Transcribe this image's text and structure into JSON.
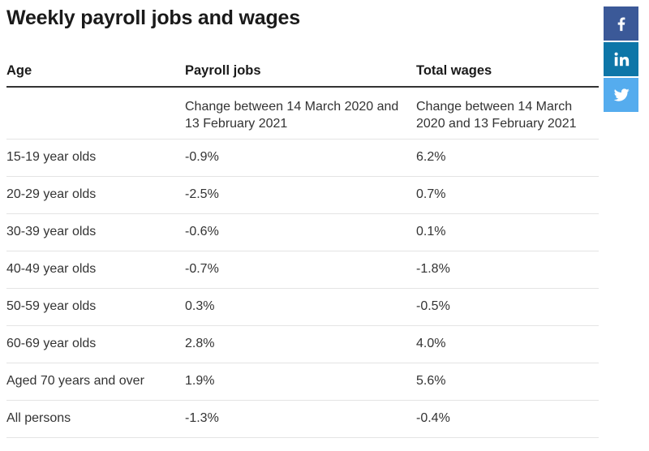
{
  "title": "Weekly payroll jobs and wages",
  "table": {
    "headers": [
      "Age",
      "Payroll jobs",
      "Total wages"
    ],
    "subheader": [
      "",
      "Change between 14 March 2020 and 13 February 2021",
      "Change between 14 March 2020 and 13 February 2021"
    ],
    "rows": [
      [
        "15-19 year olds",
        "-0.9%",
        "6.2%"
      ],
      [
        "20-29 year olds",
        "-2.5%",
        "0.7%"
      ],
      [
        "30-39 year olds",
        "-0.6%",
        "0.1%"
      ],
      [
        "40-49 year olds",
        "-0.7%",
        "-1.8%"
      ],
      [
        "50-59 year olds",
        "0.3%",
        "-0.5%"
      ],
      [
        "60-69 year olds",
        "2.8%",
        "4.0%"
      ],
      [
        "Aged 70 years and over",
        "1.9%",
        "5.6%"
      ],
      [
        "All persons",
        "-1.3%",
        "-0.4%"
      ]
    ]
  },
  "social": [
    {
      "name": "facebook",
      "icon": "facebook-icon",
      "color": "#3b5998"
    },
    {
      "name": "linkedin",
      "icon": "linkedin-icon",
      "color": "#0e76a8"
    },
    {
      "name": "twitter",
      "icon": "twitter-icon",
      "color": "#55acee"
    }
  ]
}
